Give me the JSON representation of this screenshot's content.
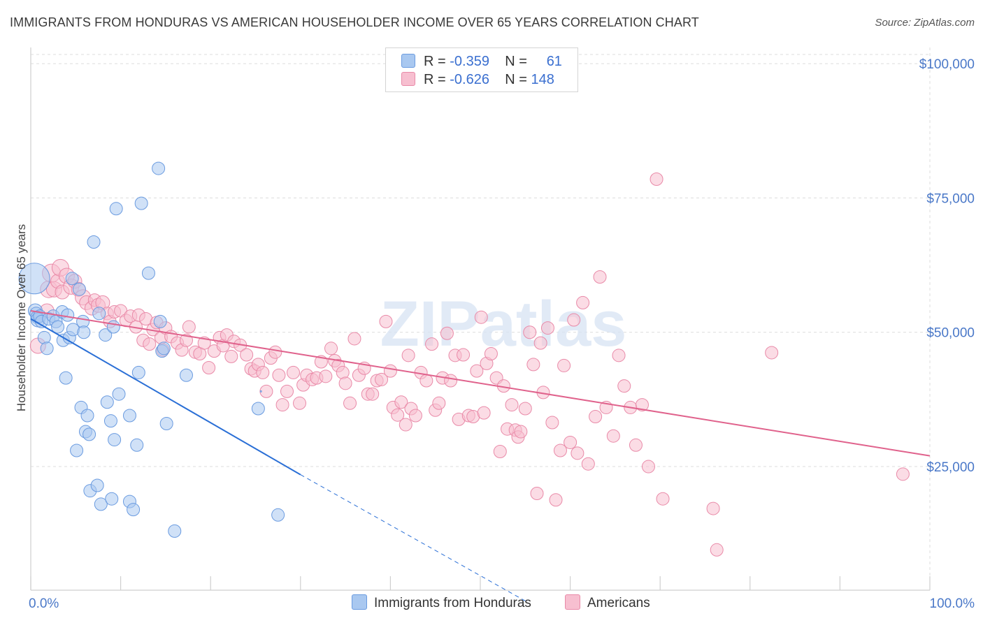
{
  "title": "IMMIGRANTS FROM HONDURAS VS AMERICAN HOUSEHOLDER INCOME OVER 65 YEARS CORRELATION CHART",
  "source": "Source: ZipAtlas.com",
  "watermark": "ZIPatlas",
  "legend": {
    "rows": [
      {
        "r_label": "R =",
        "r_value": "-0.359",
        "n_label": "N =",
        "n_value": "61",
        "color": "#a9c8f0",
        "border": "#6a9be0"
      },
      {
        "r_label": "R =",
        "r_value": "-0.626",
        "n_label": "N =",
        "n_value": "148",
        "color": "#f7bfd0",
        "border": "#e98aa8"
      }
    ]
  },
  "bottom_legend": [
    {
      "label": "Immigrants from Honduras",
      "color": "#a9c8f0",
      "border": "#6a9be0"
    },
    {
      "label": "Americans",
      "color": "#f7bfd0",
      "border": "#e98aa8"
    }
  ],
  "chart_data": {
    "type": "scatter",
    "title": "IMMIGRANTS FROM HONDURAS VS AMERICAN HOUSEHOLDER INCOME OVER 65 YEARS CORRELATION CHART",
    "xlabel": "",
    "ylabel": "Householder Income Over 65 years",
    "xlim": [
      0,
      100
    ],
    "ylim": [
      2000,
      103000
    ],
    "x_tick_labels": [
      "0.0%",
      "100.0%"
    ],
    "y_ticks": [
      25000,
      50000,
      75000,
      100000
    ],
    "y_tick_labels": [
      "$25,000",
      "$50,000",
      "$75,000",
      "$100,000"
    ],
    "grid": true,
    "series": [
      {
        "name": "Immigrants from Honduras",
        "color": "#6a9be0",
        "fill": "#a9c8f0",
        "trend": {
          "x": [
            0,
            30,
            55
          ],
          "y": [
            52500,
            23500,
            0
          ],
          "solid_until": 30
        },
        "points": [
          [
            0.4,
            60000,
            22
          ],
          [
            0.5,
            54000,
            10
          ],
          [
            0.6,
            53500,
            9
          ],
          [
            0.7,
            52800,
            9
          ],
          [
            0.8,
            52300,
            10
          ],
          [
            1.0,
            53000,
            9
          ],
          [
            1.2,
            52000,
            9
          ],
          [
            1.5,
            49000,
            9
          ],
          [
            1.8,
            47000,
            9
          ],
          [
            2.0,
            52500,
            9
          ],
          [
            2.5,
            53000,
            9
          ],
          [
            2.8,
            52000,
            9
          ],
          [
            3.0,
            51000,
            9
          ],
          [
            3.5,
            53800,
            9
          ],
          [
            3.6,
            48500,
            9
          ],
          [
            3.9,
            41500,
            9
          ],
          [
            4.1,
            53200,
            9
          ],
          [
            4.3,
            49000,
            9
          ],
          [
            4.7,
            50500,
            9
          ],
          [
            4.6,
            60000,
            9
          ],
          [
            5.1,
            28000,
            9
          ],
          [
            5.4,
            58000,
            9
          ],
          [
            5.6,
            36000,
            9
          ],
          [
            5.8,
            52000,
            9
          ],
          [
            5.9,
            50000,
            9
          ],
          [
            6.1,
            31500,
            9
          ],
          [
            6.3,
            34500,
            9
          ],
          [
            6.5,
            31000,
            9
          ],
          [
            6.6,
            20500,
            9
          ],
          [
            7.0,
            66800,
            9
          ],
          [
            7.4,
            21500,
            9
          ],
          [
            7.6,
            53500,
            9
          ],
          [
            7.8,
            18000,
            9
          ],
          [
            8.3,
            49500,
            9
          ],
          [
            8.5,
            37000,
            9
          ],
          [
            8.9,
            33500,
            9
          ],
          [
            9.0,
            19000,
            9
          ],
          [
            9.2,
            51000,
            9
          ],
          [
            9.3,
            30000,
            9
          ],
          [
            9.5,
            73000,
            9
          ],
          [
            9.8,
            38500,
            9
          ],
          [
            11.0,
            34500,
            9
          ],
          [
            11.0,
            18500,
            9
          ],
          [
            11.4,
            17000,
            9
          ],
          [
            11.8,
            29000,
            9
          ],
          [
            12.0,
            42500,
            9
          ],
          [
            12.3,
            74000,
            9
          ],
          [
            13.1,
            61000,
            9
          ],
          [
            14.2,
            80500,
            9
          ],
          [
            14.4,
            52000,
            9
          ],
          [
            14.6,
            46500,
            9
          ],
          [
            14.8,
            47000,
            9
          ],
          [
            15.1,
            33000,
            9
          ],
          [
            16.0,
            13000,
            9
          ],
          [
            17.3,
            42000,
            9
          ],
          [
            25.3,
            35800,
            9
          ],
          [
            25.6,
            39000,
            1
          ],
          [
            27.5,
            16000,
            9
          ]
        ]
      },
      {
        "name": "Americans",
        "color": "#e98aa8",
        "fill": "#f7bfd0",
        "trend": {
          "x": [
            0,
            100
          ],
          "y": [
            54000,
            27000
          ]
        },
        "points": [
          [
            0.8,
            47500,
            11
          ],
          [
            1.8,
            54000,
            10
          ],
          [
            2.0,
            58000,
            12
          ],
          [
            2.3,
            61000,
            13
          ],
          [
            2.6,
            58000,
            11
          ],
          [
            3.0,
            59500,
            10
          ],
          [
            3.3,
            62000,
            12
          ],
          [
            3.5,
            57500,
            10
          ],
          [
            4.0,
            60500,
            11
          ],
          [
            4.5,
            58500,
            11
          ],
          [
            4.9,
            59500,
            10
          ],
          [
            5.3,
            58000,
            10
          ],
          [
            5.8,
            56500,
            11
          ],
          [
            6.2,
            55500,
            10
          ],
          [
            6.8,
            54500,
            10
          ],
          [
            7.1,
            56000,
            9
          ],
          [
            7.5,
            55000,
            10
          ],
          [
            8.0,
            55500,
            10
          ],
          [
            8.5,
            53500,
            9
          ],
          [
            8.8,
            52000,
            9
          ],
          [
            9.3,
            53800,
            9
          ],
          [
            10.0,
            54000,
            9
          ],
          [
            10.6,
            52200,
            9
          ],
          [
            11.1,
            53000,
            9
          ],
          [
            11.7,
            51000,
            9
          ],
          [
            12.0,
            53200,
            9
          ],
          [
            12.5,
            48500,
            9
          ],
          [
            12.8,
            52500,
            9
          ],
          [
            13.2,
            47800,
            9
          ],
          [
            13.6,
            50500,
            9
          ],
          [
            14.0,
            51800,
            9
          ],
          [
            14.5,
            49000,
            9
          ],
          [
            14.7,
            46700,
            9
          ],
          [
            15.0,
            50800,
            9
          ],
          [
            15.6,
            49200,
            9
          ],
          [
            16.3,
            48000,
            9
          ],
          [
            16.8,
            46700,
            9
          ],
          [
            17.3,
            48500,
            9
          ],
          [
            17.6,
            51000,
            9
          ],
          [
            18.3,
            46300,
            9
          ],
          [
            18.8,
            46000,
            9
          ],
          [
            19.3,
            48000,
            9
          ],
          [
            19.8,
            43400,
            9
          ],
          [
            20.4,
            46500,
            9
          ],
          [
            21.0,
            49000,
            9
          ],
          [
            21.4,
            47500,
            9
          ],
          [
            21.8,
            49500,
            9
          ],
          [
            22.3,
            45500,
            9
          ],
          [
            22.6,
            48300,
            9
          ],
          [
            23.3,
            47600,
            9
          ],
          [
            24.0,
            45800,
            9
          ],
          [
            24.5,
            43200,
            9
          ],
          [
            24.9,
            42800,
            9
          ],
          [
            25.3,
            44000,
            9
          ],
          [
            25.8,
            42500,
            9
          ],
          [
            26.2,
            39000,
            9
          ],
          [
            26.7,
            45200,
            9
          ],
          [
            27.2,
            46300,
            9
          ],
          [
            27.6,
            42000,
            9
          ],
          [
            28.0,
            36500,
            9
          ],
          [
            28.5,
            39000,
            9
          ],
          [
            29.2,
            42500,
            9
          ],
          [
            29.9,
            36800,
            9
          ],
          [
            30.3,
            40200,
            9
          ],
          [
            30.7,
            42000,
            9
          ],
          [
            31.3,
            41200,
            9
          ],
          [
            31.8,
            41500,
            9
          ],
          [
            32.3,
            44500,
            9
          ],
          [
            32.8,
            41800,
            9
          ],
          [
            33.4,
            47000,
            9
          ],
          [
            33.8,
            44700,
            9
          ],
          [
            34.2,
            43800,
            9
          ],
          [
            34.7,
            42500,
            9
          ],
          [
            35.0,
            40500,
            9
          ],
          [
            35.5,
            36800,
            9
          ],
          [
            36.0,
            48800,
            9
          ],
          [
            36.5,
            42000,
            9
          ],
          [
            37.1,
            43300,
            9
          ],
          [
            37.5,
            38500,
            9
          ],
          [
            38.0,
            38500,
            9
          ],
          [
            38.5,
            41000,
            9
          ],
          [
            39.0,
            41200,
            9
          ],
          [
            39.5,
            52000,
            9
          ],
          [
            40.0,
            42800,
            9
          ],
          [
            40.3,
            36000,
            9
          ],
          [
            40.8,
            34600,
            9
          ],
          [
            41.2,
            37000,
            9
          ],
          [
            41.7,
            32800,
            9
          ],
          [
            42.0,
            45700,
            9
          ],
          [
            42.3,
            35800,
            9
          ],
          [
            42.8,
            34500,
            9
          ],
          [
            43.4,
            42500,
            9
          ],
          [
            44.0,
            41000,
            9
          ],
          [
            44.6,
            47800,
            9
          ],
          [
            45.0,
            35500,
            9
          ],
          [
            45.4,
            36800,
            9
          ],
          [
            45.8,
            41500,
            9
          ],
          [
            46.3,
            49800,
            9
          ],
          [
            46.7,
            41000,
            9
          ],
          [
            47.2,
            45700,
            9
          ],
          [
            47.6,
            33800,
            9
          ],
          [
            48.1,
            45800,
            9
          ],
          [
            48.7,
            34500,
            9
          ],
          [
            49.2,
            34300,
            9
          ],
          [
            49.6,
            42800,
            9
          ],
          [
            50.1,
            52800,
            9
          ],
          [
            50.4,
            35000,
            9
          ],
          [
            50.7,
            44200,
            9
          ],
          [
            51.2,
            46000,
            9
          ],
          [
            51.8,
            41500,
            9
          ],
          [
            52.2,
            27800,
            9
          ],
          [
            52.6,
            40000,
            9
          ],
          [
            53.0,
            32000,
            9
          ],
          [
            53.5,
            36500,
            9
          ],
          [
            53.9,
            31800,
            9
          ],
          [
            54.2,
            30500,
            9
          ],
          [
            54.5,
            31500,
            9
          ],
          [
            55.0,
            35800,
            9
          ],
          [
            55.5,
            50000,
            9
          ],
          [
            55.9,
            44000,
            9
          ],
          [
            56.3,
            20000,
            9
          ],
          [
            56.7,
            48000,
            9
          ],
          [
            57.0,
            38800,
            9
          ],
          [
            57.5,
            50800,
            9
          ],
          [
            58.0,
            33200,
            9
          ],
          [
            58.4,
            18800,
            9
          ],
          [
            58.9,
            28000,
            9
          ],
          [
            59.3,
            43800,
            9
          ],
          [
            60.0,
            29500,
            9
          ],
          [
            60.4,
            52300,
            9
          ],
          [
            60.8,
            27500,
            9
          ],
          [
            61.4,
            55500,
            9
          ],
          [
            62.0,
            25500,
            9
          ],
          [
            62.8,
            34300,
            9
          ],
          [
            63.3,
            60300,
            9
          ],
          [
            64.0,
            36000,
            9
          ],
          [
            64.8,
            30700,
            9
          ],
          [
            65.4,
            45700,
            9
          ],
          [
            66.0,
            40000,
            9
          ],
          [
            66.7,
            36000,
            9
          ],
          [
            67.3,
            29000,
            9
          ],
          [
            68.0,
            36500,
            9
          ],
          [
            68.7,
            25000,
            9
          ],
          [
            69.6,
            78500,
            9
          ],
          [
            70.3,
            19000,
            9
          ],
          [
            75.9,
            17200,
            9
          ],
          [
            76.3,
            9500,
            9
          ],
          [
            82.4,
            46200,
            9
          ],
          [
            97.0,
            23600,
            9
          ]
        ]
      }
    ]
  }
}
